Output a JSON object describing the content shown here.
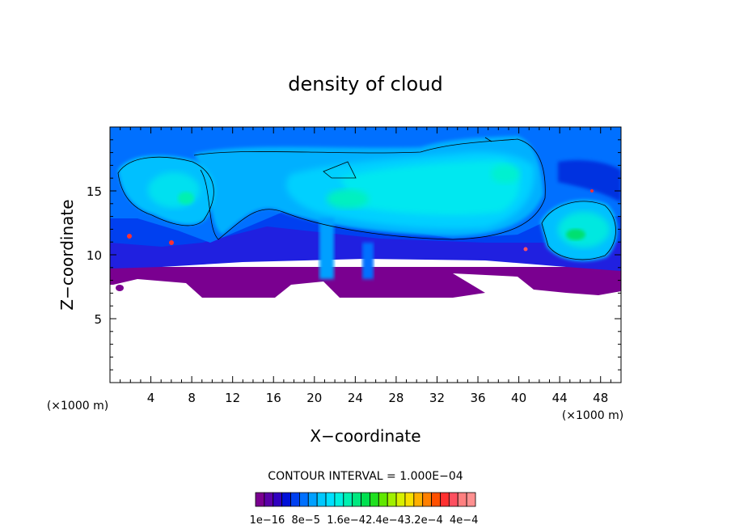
{
  "chart_data": {
    "type": "heatmap",
    "title": "density of cloud",
    "xlabel": "X−coordinate",
    "ylabel": "Z−coordinate",
    "x_unit_left": "(×1000 m)",
    "x_unit_right": "(×1000 m)",
    "xlim": [
      0,
      50
    ],
    "ylim": [
      0,
      20
    ],
    "x_ticks": [
      4,
      8,
      12,
      16,
      20,
      24,
      28,
      32,
      36,
      40,
      44,
      48
    ],
    "x_tick_labels": [
      "4",
      "8",
      "12",
      "16",
      "20",
      "24",
      "28",
      "32",
      "36",
      "40",
      "44",
      "48"
    ],
    "y_ticks": [
      5,
      10,
      15
    ],
    "y_tick_labels": [
      "5",
      "10",
      "15"
    ],
    "contour_interval_text": "CONTOUR INTERVAL = 1.000E−04",
    "colorbar": {
      "labels": [
        "1e−16",
        "8e−5",
        "1.6e−4",
        "2.4e−4",
        "3.2e−4",
        "4e−4"
      ],
      "label_text": "1e−16  8e−5  1.6e−42.4e−43.2e−4  4e−4",
      "colors": [
        "#7a0090",
        "#5a00a8",
        "#3000c0",
        "#0010d8",
        "#0040f0",
        "#0070ff",
        "#00a0ff",
        "#00c8ff",
        "#00e0ff",
        "#00f0e0",
        "#00f0b0",
        "#00e880",
        "#00e050",
        "#20e020",
        "#60e800",
        "#a0f000",
        "#d8f000",
        "#f8e000",
        "#ffb000",
        "#ff8000",
        "#ff5000",
        "#ff3030",
        "#ff5060",
        "#ff8080",
        "#ff9090"
      ]
    }
  }
}
